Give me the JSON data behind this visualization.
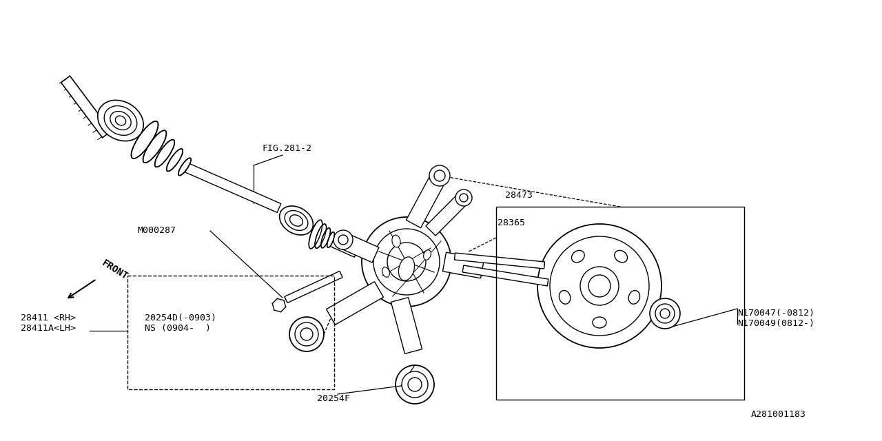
{
  "bg_color": "#ffffff",
  "line_color": "#000000",
  "fig_width": 12.8,
  "fig_height": 6.4,
  "dpi": 100,
  "labels": {
    "fig_ref": "FIG.281-2",
    "m000287": "M000287",
    "28473": "28473",
    "28365": "28365",
    "20254d": "20254D(-0903)\nNS (0904-  )",
    "28411": "28411 <RH>\n28411A<LH>",
    "20254f": "20254F",
    "n170047": "N170047(-0812)\nN170049(0812-)",
    "ref_num": "A281001183",
    "front": "FRONT"
  }
}
